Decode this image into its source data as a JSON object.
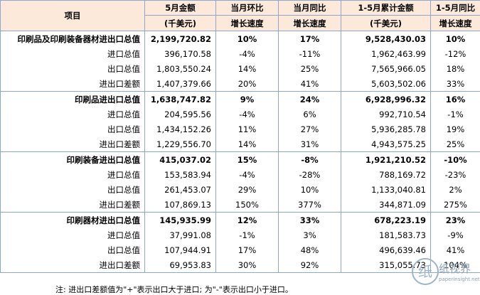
{
  "headers": {
    "item": "项目",
    "col1": [
      "5月金额",
      "(千美元)"
    ],
    "col2": [
      "当月环比",
      "增长速度"
    ],
    "col3": [
      "当月同比",
      "增长速度"
    ],
    "col4": [
      "1-5月累计金额",
      "(千美元)"
    ],
    "col5": [
      "1-5月同比",
      "增长速度"
    ]
  },
  "rows": [
    {
      "name": "印刷品及印刷装备器材进出口总值",
      "v1": "2,199,720.82",
      "v2": "10%",
      "v3": "17%",
      "v4": "9,528,430.03",
      "v5": "10%",
      "bold": true
    },
    {
      "name": "进口总值",
      "v1": "396,170.58",
      "v2": "-4%",
      "v3": "-11%",
      "v4": "1,962,463.99",
      "v5": "-12%"
    },
    {
      "name": "出口总值",
      "v1": "1,803,550.24",
      "v2": "14%",
      "v3": "25%",
      "v4": "7,565,966.05",
      "v5": "18%"
    },
    {
      "name": "进出口差额",
      "v1": "1,407,379.66",
      "v2": "20%",
      "v3": "41%",
      "v4": "5,603,502.06",
      "v5": "33%"
    },
    {
      "name": "印刷品进出口总值",
      "v1": "1,638,747.82",
      "v2": "9%",
      "v3": "24%",
      "v4": "6,928,996.32",
      "v5": "16%",
      "bold": true
    },
    {
      "name": "进口总值",
      "v1": "204,595.56",
      "v2": "-4%",
      "v3": "6%",
      "v4": "992,710.54",
      "v5": "-1%"
    },
    {
      "name": "出口总值",
      "v1": "1,434,152.26",
      "v2": "11%",
      "v3": "27%",
      "v4": "5,936,285.78",
      "v5": "19%"
    },
    {
      "name": "进出口差额",
      "v1": "1,229,556.70",
      "v2": "14%",
      "v3": "31%",
      "v4": "4,943,575.25",
      "v5": "25%"
    },
    {
      "name": "印刷装备进出口总值",
      "v1": "415,037.02",
      "v2": "15%",
      "v3": "-8%",
      "v4": "1,921,210.52",
      "v5": "-10%",
      "bold": true
    },
    {
      "name": "进口总值",
      "v1": "153,583.94",
      "v2": "-4%",
      "v3": "-28%",
      "v4": "788,169.72",
      "v5": "-23%"
    },
    {
      "name": "出口总值",
      "v1": "261,453.07",
      "v2": "29%",
      "v3": "10%",
      "v4": "1,133,040.81",
      "v5": "2%"
    },
    {
      "name": "进出口差额",
      "v1": "107,869.13",
      "v2": "150%",
      "v3": "377%",
      "v4": "344,871.09",
      "v5": "275%"
    },
    {
      "name": "印刷器材进出口总值",
      "v1": "145,935.99",
      "v2": "12%",
      "v3": "33%",
      "v4": "678,223.19",
      "v5": "23%",
      "bold": true
    },
    {
      "name": "进口总值",
      "v1": "37,991.08",
      "v2": "-1%",
      "v3": "3%",
      "v4": "181,583.73",
      "v5": "-9%"
    },
    {
      "name": "出口总值",
      "v1": "107,944.91",
      "v2": "17%",
      "v3": "48%",
      "v4": "496,639.46",
      "v5": "41%"
    },
    {
      "name": "进出口差额",
      "v1": "69,953.83",
      "v2": "30%",
      "v3": "92%",
      "v4": "315,055.73",
      "v5": "104%"
    }
  ],
  "note": "注: 进出口差额值为\"+\"表示出口大于进口; 为\"-\"表示出口小于进口。",
  "watermark": {
    "mark": "纸",
    "brand": "纸视界",
    "url": "paperinsight.net"
  }
}
